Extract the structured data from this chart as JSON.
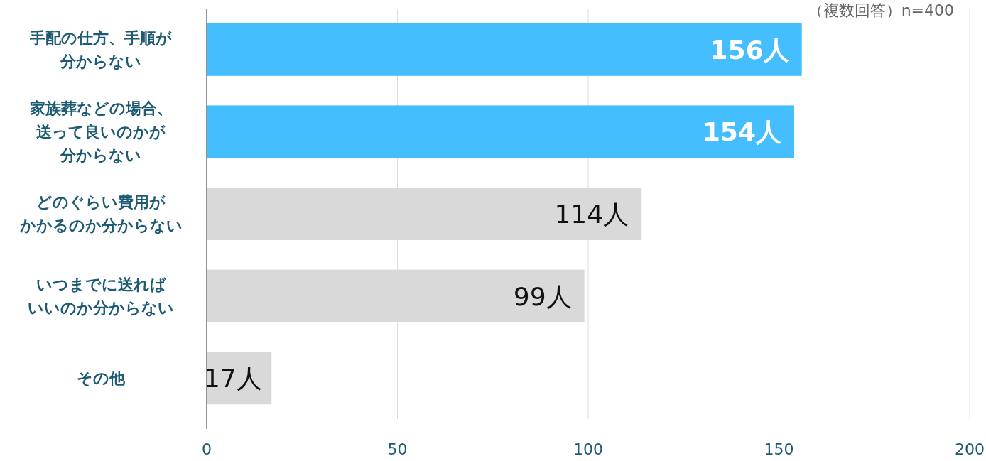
{
  "chart_data": {
    "type": "bar",
    "orientation": "horizontal",
    "categories": [
      "手配の仕方、手順が分からない",
      "家族葬などの場合、送って良いのかが分からない",
      "どのぐらい費用がかかるのか分からない",
      "いつまでに送ればいいのか分からない",
      "その他"
    ],
    "values": [
      156,
      154,
      114,
      99,
      17
    ],
    "colors": [
      "#44befe",
      "#44befe",
      "#d9d9d9",
      "#d9d9d9",
      "#d9d9d9"
    ],
    "value_labels": [
      "156人",
      "154人",
      "114人",
      "99人",
      "17人"
    ],
    "xlim": [
      0,
      200
    ],
    "xticks": [
      0,
      50,
      100,
      150,
      200
    ],
    "grid": "x",
    "annotations": [
      "（複数回答）n=400"
    ]
  }
}
